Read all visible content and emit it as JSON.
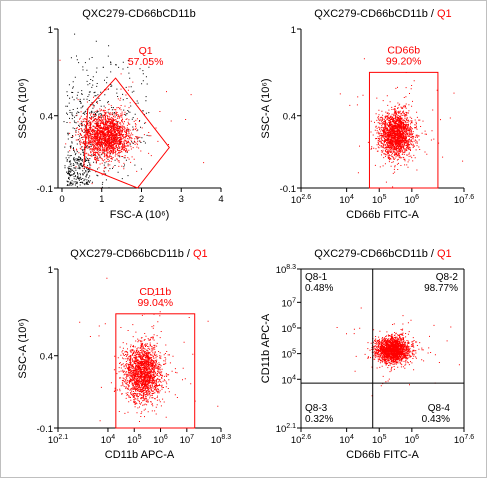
{
  "colors": {
    "gated": "#ff0000",
    "ungated": "#000000",
    "axis": "#000000",
    "frame": "#bfbfbf"
  },
  "chart_data": [
    {
      "type": "scatter",
      "title": "QXC279-CD66bCD11b",
      "title_gate": "",
      "xlabel": "FSC-A (10⁶)",
      "ylabel": "SSC-A (10⁶)",
      "x_scale": "linear",
      "y_scale": "linear",
      "xlim": [
        -0.1,
        4
      ],
      "ylim": [
        -0.1,
        1
      ],
      "x_ticks": [
        "0",
        "1",
        "2",
        "3",
        "4"
      ],
      "y_ticks": [
        "-0.1",
        "0.4",
        "1"
      ],
      "gate": {
        "name": "Q1",
        "percent": "57.05%",
        "shape": "polygon",
        "vertices": [
          [
            0.65,
            0.45
          ],
          [
            1.35,
            0.66
          ],
          [
            2.7,
            0.18
          ],
          [
            1.9,
            -0.1
          ],
          [
            0.55,
            0.05
          ]
        ]
      },
      "series": [
        {
          "color": "#ff0000",
          "center": [
            1.1,
            0.26
          ],
          "spread": [
            0.3,
            0.08
          ]
        },
        {
          "color": "#000000",
          "center": [
            0.7,
            0.22
          ],
          "spread": [
            0.6,
            0.25
          ]
        }
      ]
    },
    {
      "type": "scatter",
      "title": "QXC279-CD66bCD11b",
      "title_gate": "Q1",
      "xlabel": "CD66b FITC-A",
      "ylabel": "SSC-A (10⁶)",
      "x_scale": "log",
      "y_scale": "linear",
      "xlim": [
        2.6,
        7.6
      ],
      "ylim": [
        -0.1,
        1
      ],
      "x_ticks": [
        "2.6",
        "4",
        "5",
        "6",
        "7.6"
      ],
      "y_ticks": [
        "-0.1",
        "0.4",
        "1"
      ],
      "gate": {
        "name": "CD66b",
        "percent": "99.20%",
        "shape": "rectangle",
        "x_range": [
          4.7,
          6.8
        ],
        "y_range": [
          -0.1,
          0.7
        ]
      },
      "series": [
        {
          "color": "#ff0000",
          "center": [
            5.5,
            0.27
          ],
          "spread": [
            0.25,
            0.08
          ]
        }
      ]
    },
    {
      "type": "scatter",
      "title": "QXC279-CD66bCD11b",
      "title_gate": "Q1",
      "xlabel": "CD11b APC-A",
      "ylabel": "SSC-A (10⁶)",
      "x_scale": "log",
      "y_scale": "linear",
      "xlim": [
        2.1,
        8.3
      ],
      "ylim": [
        -0.1,
        1
      ],
      "x_ticks": [
        "2.1",
        "4",
        "5",
        "6",
        "7",
        "8.3"
      ],
      "y_ticks": [
        "-0.1",
        "0.4",
        "1"
      ],
      "gate": {
        "name": "CD11b",
        "percent": "99.04%",
        "shape": "rectangle",
        "x_range": [
          4.3,
          7.3
        ],
        "y_range": [
          -0.1,
          0.69
        ]
      },
      "series": [
        {
          "color": "#ff0000",
          "center": [
            5.3,
            0.28
          ],
          "spread": [
            0.35,
            0.1
          ]
        }
      ]
    },
    {
      "type": "scatter",
      "title": "QXC279-CD66bCD11b",
      "title_gate": "Q1",
      "xlabel": "CD66b FITC-A",
      "ylabel": "CD11b APC-A",
      "x_scale": "log",
      "y_scale": "log",
      "xlim": [
        2.6,
        7.6
      ],
      "ylim": [
        2.1,
        8.3
      ],
      "x_ticks": [
        "2.6",
        "4",
        "5",
        "6",
        "7.6"
      ],
      "y_ticks": [
        "2.1",
        "4",
        "5",
        "6",
        "7",
        "8.3"
      ],
      "quadrant_split": {
        "x": 4.8,
        "y": 3.85
      },
      "quadrants": [
        {
          "name": "Q8-1",
          "percent": "0.48%",
          "position": "top-left"
        },
        {
          "name": "Q8-2",
          "percent": "98.77%",
          "position": "top-right"
        },
        {
          "name": "Q8-3",
          "percent": "0.32%",
          "position": "bottom-left"
        },
        {
          "name": "Q8-4",
          "percent": "0.43%",
          "position": "bottom-right"
        }
      ],
      "series": [
        {
          "color": "#ff0000",
          "center": [
            5.4,
            5.15
          ],
          "spread": [
            0.25,
            0.25
          ]
        }
      ]
    }
  ]
}
